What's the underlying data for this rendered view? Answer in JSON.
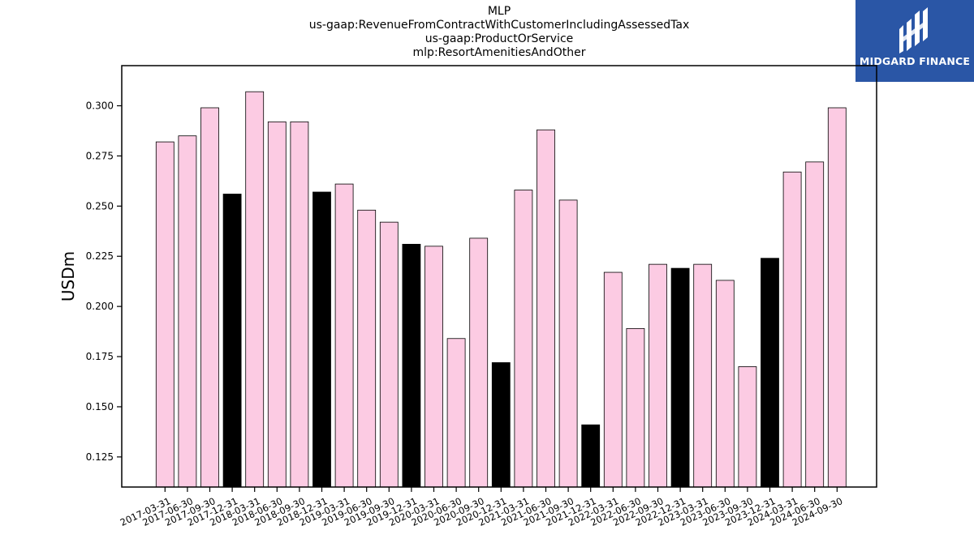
{
  "title_lines": [
    "MLP",
    "us-gaap:RevenueFromContractWithCustomerIncludingAssessedTax",
    "us-gaap:ProductOrService",
    "mlp:ResortAmenitiesAndOther"
  ],
  "logo": {
    "name": "MIDGARD FINANCE",
    "color": "#2a56a6"
  },
  "colors": {
    "pink": "#fccbe3",
    "black": "#000000",
    "border": "#000000"
  },
  "chart_data": {
    "type": "bar",
    "title": "MLP\nus-gaap:RevenueFromContractWithCustomerIncludingAssessedTax\nus-gaap:ProductOrService\nmlp:ResortAmenitiesAndOther",
    "xlabel": "",
    "ylabel": "USDm",
    "ylim": [
      0.11,
      0.32
    ],
    "yticks": [
      "0.125",
      "0.150",
      "0.175",
      "0.200",
      "0.225",
      "0.250",
      "0.275",
      "0.300"
    ],
    "categories": [
      "2017-03-31",
      "2017-06-30",
      "2017-09-30",
      "2017-12-31",
      "2018-03-31",
      "2018-06-30",
      "2018-09-30",
      "2018-12-31",
      "2019-03-31",
      "2019-06-30",
      "2019-09-30",
      "2019-12-31",
      "2020-03-31",
      "2020-06-30",
      "2020-09-30",
      "2020-12-31",
      "2021-03-31",
      "2021-06-30",
      "2021-09-30",
      "2021-12-31",
      "2022-03-31",
      "2022-06-30",
      "2022-09-30",
      "2022-12-31",
      "2023-03-31",
      "2023-06-30",
      "2023-09-30",
      "2023-12-31",
      "2024-03-31",
      "2024-06-30",
      "2024-09-30"
    ],
    "values": [
      0.282,
      0.285,
      0.299,
      0.256,
      0.307,
      0.292,
      0.292,
      0.257,
      0.261,
      0.248,
      0.242,
      0.231,
      0.23,
      0.184,
      0.234,
      0.172,
      0.258,
      0.288,
      0.253,
      0.141,
      0.217,
      0.189,
      0.221,
      0.219,
      0.221,
      0.213,
      0.17,
      0.224,
      0.267,
      0.272,
      0.299
    ],
    "bar_colors": [
      "pink",
      "pink",
      "pink",
      "black",
      "pink",
      "pink",
      "pink",
      "black",
      "pink",
      "pink",
      "pink",
      "black",
      "pink",
      "pink",
      "pink",
      "black",
      "pink",
      "pink",
      "pink",
      "black",
      "pink",
      "pink",
      "pink",
      "black",
      "pink",
      "pink",
      "pink",
      "black",
      "pink",
      "pink",
      "pink"
    ],
    "grid": false,
    "legend": "none"
  }
}
